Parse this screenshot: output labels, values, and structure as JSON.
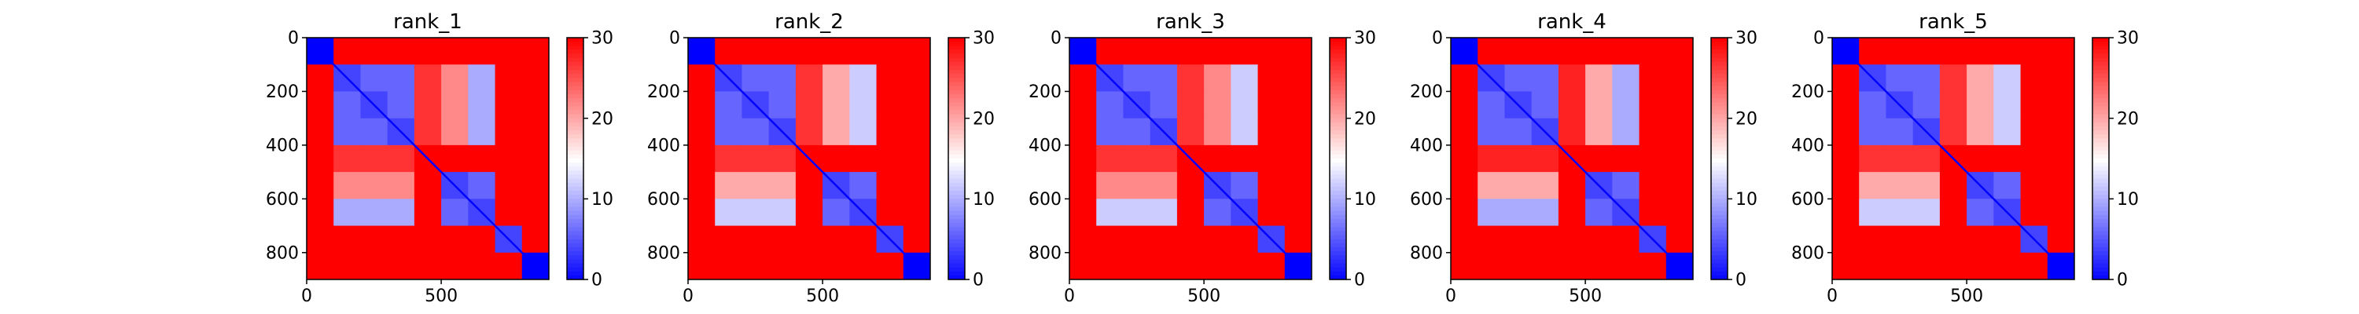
{
  "chart_data": [
    {
      "type": "heatmap",
      "title": "rank_1",
      "xlabel": "",
      "ylabel": "",
      "x_range": [
        0,
        900
      ],
      "y_range": [
        0,
        900
      ],
      "x_ticks": [
        0,
        500
      ],
      "y_ticks": [
        0,
        200,
        400,
        600,
        800
      ],
      "colorbar": {
        "range": [
          0,
          30
        ],
        "ticks": [
          0,
          10,
          20,
          30
        ],
        "colormap": "bwr"
      },
      "matrix_grid": [
        [
          0,
          30,
          30,
          30,
          30,
          30,
          30,
          30,
          30
        ],
        [
          30,
          4,
          6,
          6,
          27,
          22,
          10,
          30,
          30
        ],
        [
          30,
          6,
          4,
          6,
          27,
          22,
          10,
          30,
          30
        ],
        [
          30,
          6,
          6,
          4,
          27,
          22,
          10,
          30,
          30
        ],
        [
          30,
          27,
          27,
          27,
          30,
          30,
          30,
          30,
          30
        ],
        [
          30,
          22,
          22,
          22,
          30,
          4,
          6,
          30,
          30
        ],
        [
          30,
          10,
          10,
          10,
          30,
          6,
          4,
          30,
          30
        ],
        [
          30,
          30,
          30,
          30,
          30,
          30,
          30,
          4,
          30
        ],
        [
          30,
          30,
          30,
          30,
          30,
          30,
          30,
          30,
          0
        ]
      ]
    },
    {
      "type": "heatmap",
      "title": "rank_2",
      "xlabel": "",
      "ylabel": "",
      "x_range": [
        0,
        900
      ],
      "y_range": [
        0,
        900
      ],
      "x_ticks": [
        0,
        500
      ],
      "y_ticks": [
        0,
        200,
        400,
        600,
        800
      ],
      "colorbar": {
        "range": [
          0,
          30
        ],
        "ticks": [
          0,
          10,
          20,
          30
        ],
        "colormap": "bwr"
      },
      "matrix_grid": [
        [
          0,
          30,
          30,
          30,
          30,
          30,
          30,
          30,
          30
        ],
        [
          30,
          4,
          6,
          6,
          27,
          20,
          12,
          30,
          30
        ],
        [
          30,
          6,
          4,
          6,
          27,
          20,
          12,
          30,
          30
        ],
        [
          30,
          6,
          6,
          4,
          27,
          20,
          12,
          30,
          30
        ],
        [
          30,
          27,
          27,
          27,
          30,
          30,
          30,
          30,
          30
        ],
        [
          30,
          20,
          20,
          20,
          30,
          4,
          6,
          30,
          30
        ],
        [
          30,
          12,
          12,
          12,
          30,
          6,
          4,
          30,
          30
        ],
        [
          30,
          30,
          30,
          30,
          30,
          30,
          30,
          4,
          30
        ],
        [
          30,
          30,
          30,
          30,
          30,
          30,
          30,
          30,
          0
        ]
      ]
    },
    {
      "type": "heatmap",
      "title": "rank_3",
      "xlabel": "",
      "ylabel": "",
      "x_range": [
        0,
        900
      ],
      "y_range": [
        0,
        900
      ],
      "x_ticks": [
        0,
        500
      ],
      "y_ticks": [
        0,
        200,
        400,
        600,
        800
      ],
      "colorbar": {
        "range": [
          0,
          30
        ],
        "ticks": [
          0,
          10,
          20,
          30
        ],
        "colormap": "bwr"
      },
      "matrix_grid": [
        [
          0,
          30,
          30,
          30,
          30,
          30,
          30,
          30,
          30
        ],
        [
          30,
          4,
          6,
          6,
          27,
          22,
          12,
          30,
          30
        ],
        [
          30,
          6,
          4,
          6,
          27,
          22,
          12,
          30,
          30
        ],
        [
          30,
          6,
          6,
          4,
          27,
          22,
          12,
          30,
          30
        ],
        [
          30,
          27,
          27,
          27,
          30,
          30,
          30,
          30,
          30
        ],
        [
          30,
          22,
          22,
          22,
          30,
          4,
          6,
          30,
          30
        ],
        [
          30,
          12,
          12,
          12,
          30,
          6,
          4,
          30,
          30
        ],
        [
          30,
          30,
          30,
          30,
          30,
          30,
          30,
          4,
          30
        ],
        [
          30,
          30,
          30,
          30,
          30,
          30,
          30,
          30,
          0
        ]
      ]
    },
    {
      "type": "heatmap",
      "title": "rank_4",
      "xlabel": "",
      "ylabel": "",
      "x_range": [
        0,
        900
      ],
      "y_range": [
        0,
        900
      ],
      "x_ticks": [
        0,
        500
      ],
      "y_ticks": [
        0,
        200,
        400,
        600,
        800
      ],
      "colorbar": {
        "range": [
          0,
          30
        ],
        "ticks": [
          0,
          10,
          20,
          30
        ],
        "colormap": "bwr"
      },
      "matrix_grid": [
        [
          0,
          30,
          30,
          30,
          30,
          30,
          30,
          30,
          30
        ],
        [
          30,
          4,
          6,
          6,
          28,
          20,
          10,
          30,
          30
        ],
        [
          30,
          6,
          4,
          6,
          28,
          20,
          10,
          30,
          30
        ],
        [
          30,
          6,
          6,
          4,
          28,
          20,
          10,
          30,
          30
        ],
        [
          30,
          28,
          28,
          28,
          30,
          30,
          30,
          30,
          30
        ],
        [
          30,
          20,
          20,
          20,
          30,
          4,
          6,
          30,
          30
        ],
        [
          30,
          10,
          10,
          10,
          30,
          6,
          4,
          30,
          30
        ],
        [
          30,
          30,
          30,
          30,
          30,
          30,
          30,
          4,
          30
        ],
        [
          30,
          30,
          30,
          30,
          30,
          30,
          30,
          30,
          0
        ]
      ]
    },
    {
      "type": "heatmap",
      "title": "rank_5",
      "xlabel": "",
      "ylabel": "",
      "x_range": [
        0,
        900
      ],
      "y_range": [
        0,
        900
      ],
      "x_ticks": [
        0,
        500
      ],
      "y_ticks": [
        0,
        200,
        400,
        600,
        800
      ],
      "colorbar": {
        "range": [
          0,
          30
        ],
        "ticks": [
          0,
          10,
          20,
          30
        ],
        "colormap": "bwr"
      },
      "matrix_grid": [
        [
          0,
          30,
          30,
          30,
          30,
          30,
          30,
          30,
          30
        ],
        [
          30,
          4,
          6,
          6,
          27,
          20,
          12,
          30,
          30
        ],
        [
          30,
          6,
          4,
          6,
          27,
          20,
          12,
          30,
          30
        ],
        [
          30,
          6,
          6,
          4,
          27,
          20,
          12,
          30,
          30
        ],
        [
          30,
          27,
          27,
          27,
          30,
          30,
          30,
          30,
          30
        ],
        [
          30,
          20,
          20,
          20,
          30,
          4,
          6,
          30,
          30
        ],
        [
          30,
          12,
          12,
          12,
          30,
          6,
          4,
          30,
          30
        ],
        [
          30,
          30,
          30,
          30,
          30,
          30,
          30,
          4,
          30
        ],
        [
          30,
          30,
          30,
          30,
          30,
          30,
          30,
          30,
          0
        ]
      ]
    }
  ]
}
